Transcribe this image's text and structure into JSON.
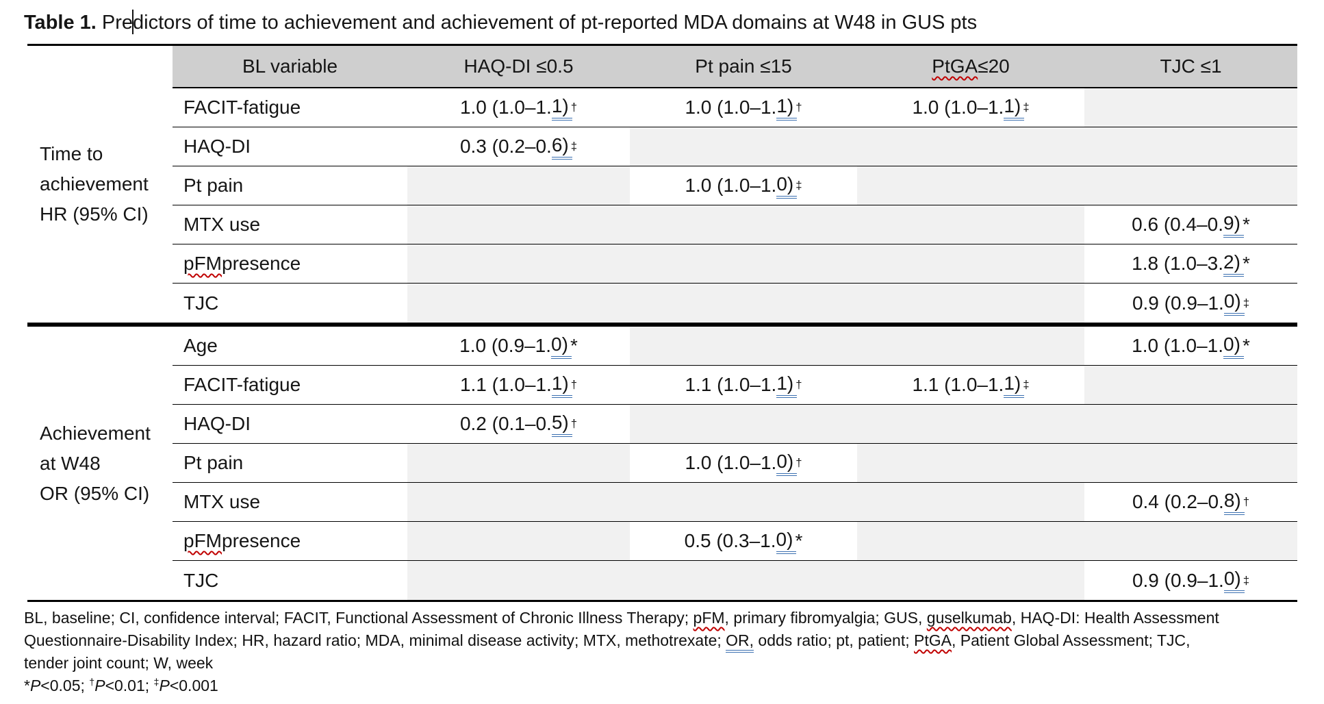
{
  "title": {
    "segments": [
      {
        "t": "Table 1.",
        "b": true
      },
      {
        "t": " Pre"
      },
      {
        "caret": true
      },
      {
        "t": "dictors of time to achievement and achievement of pt-reported MDA domains at W48 in GUS pts"
      }
    ]
  },
  "table": {
    "columns": [
      {
        "label": "BL variable"
      },
      {
        "label": "HAQ-DI ≤0.5"
      },
      {
        "label": "Pt pain ≤15"
      },
      {
        "label": "PtGA ≤20",
        "sq": "PtGA"
      },
      {
        "label": "TJC ≤1"
      }
    ],
    "sections": [
      {
        "label_lines": [
          "Time to",
          "achievement",
          "HR (95% CI)"
        ],
        "rows": [
          {
            "label": "FACIT-fatigue",
            "cells": [
              {
                "v": "1.0 (1.0–1.1)",
                "m": "†",
                "s": true
              },
              {
                "v": "1.0 (1.0–1.1)",
                "m": "†",
                "s": true
              },
              {
                "v": "1.0 (1.0–1.1)",
                "m": "‡",
                "s": true
              },
              null
            ]
          },
          {
            "label": "HAQ-DI",
            "cells": [
              {
                "v": "0.3 (0.2–0.6)",
                "m": "‡",
                "s": true
              },
              null,
              null,
              null
            ]
          },
          {
            "label": "Pt pain",
            "cells": [
              null,
              {
                "v": "1.0 (1.0–1.0)",
                "m": "‡",
                "s": true
              },
              null,
              null
            ]
          },
          {
            "label": "MTX use",
            "cells": [
              null,
              null,
              null,
              {
                "v": "0.6 (0.4–0.9)",
                "m": "*",
                "s": false
              }
            ]
          },
          {
            "label": "pFM presence",
            "sq": "pFM",
            "cells": [
              null,
              null,
              null,
              {
                "v": "1.8 (1.0–3.2)",
                "m": "*",
                "s": false
              }
            ]
          },
          {
            "label": "TJC",
            "cells": [
              null,
              null,
              null,
              {
                "v": "0.9 (0.9–1.0)",
                "m": "‡",
                "s": true
              }
            ]
          }
        ]
      },
      {
        "label_lines": [
          "Achievement",
          "at W48",
          "OR (95% CI)"
        ],
        "rows": [
          {
            "label": "Age",
            "cells": [
              {
                "v": "1.0 (0.9–1.0)",
                "m": "*",
                "s": false
              },
              null,
              null,
              {
                "v": "1.0 (1.0–1.0)",
                "m": "*",
                "s": false
              }
            ]
          },
          {
            "label": "FACIT-fatigue",
            "cells": [
              {
                "v": "1.1 (1.0–1.1)",
                "m": "†",
                "s": true
              },
              {
                "v": "1.1 (1.0–1.1)",
                "m": "†",
                "s": true
              },
              {
                "v": "1.1 (1.0–1.1)",
                "m": "‡",
                "s": true
              },
              null
            ]
          },
          {
            "label": "HAQ-DI",
            "cells": [
              {
                "v": "0.2 (0.1–0.5)",
                "m": "†",
                "s": true
              },
              null,
              null,
              null
            ]
          },
          {
            "label": "Pt pain",
            "cells": [
              null,
              {
                "v": "1.0 (1.0–1.0)",
                "m": "†",
                "s": true
              },
              null,
              null
            ]
          },
          {
            "label": "MTX use",
            "cells": [
              null,
              null,
              null,
              {
                "v": "0.4 (0.2–0.8)",
                "m": "†",
                "s": true
              }
            ]
          },
          {
            "label": "pFM presence",
            "sq": "pFM",
            "cells": [
              null,
              {
                "v": "0.5 (0.3–1.0)",
                "m": "*",
                "s": false
              },
              null,
              null
            ]
          },
          {
            "label": "TJC",
            "cells": [
              null,
              null,
              null,
              {
                "v": "0.9 (0.9–1.0)",
                "m": "‡",
                "s": true
              }
            ]
          }
        ]
      }
    ]
  },
  "footnotes": {
    "lines": [
      [
        {
          "t": "BL, baseline; CI, confidence interval; FACIT, Functional Assessment of Chronic Illness Therapy; "
        },
        {
          "t": "pFM",
          "c": "sp"
        },
        {
          "t": ", primary fibromyalgia; GUS, "
        },
        {
          "t": "guselkumab",
          "c": "sp"
        },
        {
          "t": ", HAQ-DI: Health Assessment"
        }
      ],
      [
        {
          "t": "Questionnaire-Disability Index; HR, hazard ratio; MDA, minimal disease activity; MTX, methotrexate; "
        },
        {
          "t": "OR,",
          "c": "gr2"
        },
        {
          "t": " odds ratio; pt, patient; "
        },
        {
          "t": "PtGA",
          "c": "sp"
        },
        {
          "t": ", Patient Global Assessment; TJC,"
        }
      ],
      [
        {
          "t": "tender joint count; W, week"
        }
      ],
      [
        {
          "t": "*"
        },
        {
          "t": "P",
          "c": "i"
        },
        {
          "t": "<0.05; "
        },
        {
          "t": "†",
          "c": "sup"
        },
        {
          "t": "P",
          "c": "i"
        },
        {
          "t": "<0.01; "
        },
        {
          "t": "‡",
          "c": "sup"
        },
        {
          "t": "P",
          "c": "i"
        },
        {
          "t": "<0.001"
        }
      ]
    ]
  },
  "colors": {
    "header_bg": "#cfcfcf",
    "empty_cell_bg": "#f1f1f1",
    "grammar_blue": "#3a6fb0",
    "spell_red": "#c00000"
  }
}
